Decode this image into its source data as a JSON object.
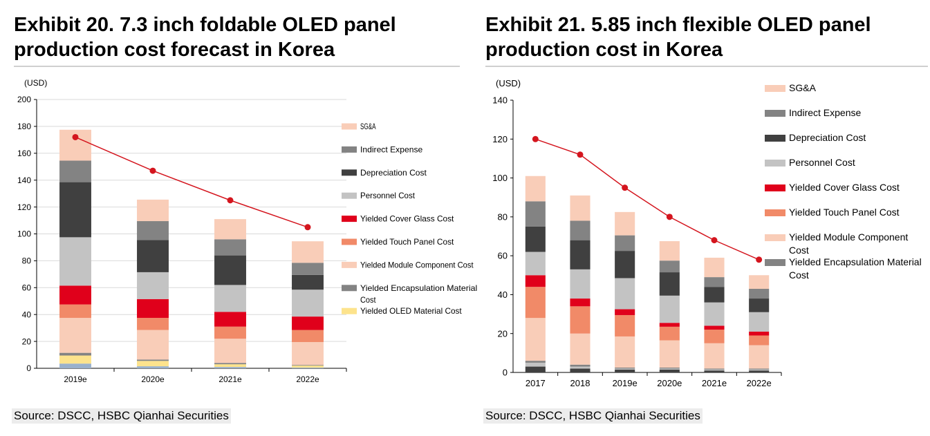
{
  "chart_data": [
    {
      "type": "bar",
      "stacked": true,
      "title": "Exhibit 20. 7.3 inch foldable OLED panel production cost forecast in Korea",
      "unit_label": "(USD)",
      "categories": [
        "2019e",
        "2020e",
        "2021e",
        "2022e"
      ],
      "ylim": [
        0,
        200
      ],
      "yticks": [
        0,
        20,
        40,
        60,
        80,
        100,
        120,
        140,
        160,
        180,
        200
      ],
      "grid": true,
      "legend_position": "right",
      "series": [
        {
          "name": "SG&A",
          "color": "#f9cdb8",
          "values": [
            23,
            16,
            15,
            16
          ]
        },
        {
          "name": "Indirect Expense",
          "color": "#838383",
          "values": [
            16,
            14,
            12,
            9
          ]
        },
        {
          "name": "Depreciation Cost",
          "color": "#404040",
          "values": [
            41,
            24,
            22,
            11
          ]
        },
        {
          "name": "Personnel Cost",
          "color": "#c3c3c3",
          "values": [
            36,
            20,
            20,
            20
          ]
        },
        {
          "name": "Yielded Cover Glass Cost",
          "color": "#e0001b",
          "values": [
            14,
            14,
            11,
            10
          ]
        },
        {
          "name": "Yielded Touch Panel Cost",
          "color": "#f18a68",
          "values": [
            10,
            9,
            9,
            9
          ]
        },
        {
          "name": "Yielded Module Component Cost",
          "color": "#f9cdb8",
          "values": [
            26,
            22,
            18,
            17
          ]
        },
        {
          "name": "Yielded Encapsulation Material Cost",
          "color": "#838383",
          "values": [
            2,
            1,
            1,
            0.5
          ]
        },
        {
          "name": "Yielded OLED Material Cost",
          "color": "#fde38c",
          "values": [
            6,
            4,
            2,
            1.5
          ]
        }
      ],
      "bottom_segment": {
        "color": "#9ab1cc",
        "values": [
          3.5,
          1.5,
          1,
          0.5
        ]
      },
      "line": {
        "color": "#d4151e",
        "values": [
          172,
          147,
          125,
          105
        ]
      },
      "source": "Source: DSCC, HSBC Qianhai Securities"
    },
    {
      "type": "bar",
      "stacked": true,
      "title": "Exhibit 21. 5.85 inch flexible OLED panel production cost in Korea",
      "unit_label": "(USD)",
      "categories": [
        "2017",
        "2018",
        "2019e",
        "2020e",
        "2021e",
        "2022e"
      ],
      "ylim": [
        0,
        140
      ],
      "yticks": [
        0,
        20,
        40,
        60,
        80,
        100,
        120,
        140
      ],
      "grid": false,
      "legend_position": "right",
      "series": [
        {
          "name": "SG&A",
          "color": "#f9cdb8",
          "values": [
            13,
            13,
            12,
            10,
            10,
            7
          ]
        },
        {
          "name": "Indirect Expense",
          "color": "#838383",
          "values": [
            13,
            10,
            8,
            6,
            5,
            5
          ]
        },
        {
          "name": "Depreciation Cost",
          "color": "#404040",
          "values": [
            13,
            15,
            14,
            12,
            8,
            7
          ]
        },
        {
          "name": "Personnel Cost",
          "color": "#c3c3c3",
          "values": [
            12,
            15,
            16,
            14,
            12,
            10
          ]
        },
        {
          "name": "Yielded Cover Glass Cost",
          "color": "#e0001b",
          "values": [
            6,
            4,
            3,
            2,
            2,
            2
          ]
        },
        {
          "name": "Yielded Touch Panel Cost",
          "color": "#f18a68",
          "values": [
            16,
            14,
            11,
            7,
            7,
            5
          ]
        },
        {
          "name": "Yielded Module Component Cost",
          "color": "#f9cdb8",
          "values": [
            22,
            16,
            16,
            14,
            13,
            12
          ]
        },
        {
          "name": "Yielded Encapsulation Material Cost",
          "color": "#838383",
          "values": [
            1,
            1,
            0.5,
            0.5,
            0.5,
            0.5
          ]
        }
      ],
      "bottom_segments": [
        {
          "color": "#404040",
          "values": [
            3,
            2,
            1.5,
            1.5,
            1,
            1
          ]
        },
        {
          "color": "#c3c3c3",
          "values": [
            2,
            1,
            0.5,
            0.5,
            0.5,
            0.5
          ]
        }
      ],
      "line": {
        "color": "#d4151e",
        "values": [
          120,
          112,
          95,
          80,
          68,
          58
        ]
      },
      "source": "Source: DSCC, HSBC Qianhai Securities"
    }
  ]
}
